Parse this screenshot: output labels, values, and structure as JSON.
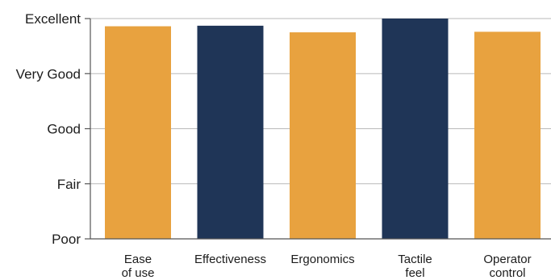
{
  "chart_data": {
    "type": "bar",
    "title": "",
    "xlabel": "",
    "ylabel": "",
    "y_ticks": [
      "Poor",
      "Fair",
      "Good",
      "Very Good",
      "Excellent"
    ],
    "ylim": [
      0,
      4
    ],
    "categories": [
      [
        "Ease",
        "of use"
      ],
      [
        "Effectiveness"
      ],
      [
        "Ergonomics"
      ],
      [
        "Tactile",
        "feel"
      ],
      [
        "Operator",
        "control"
      ]
    ],
    "values": [
      3.86,
      3.87,
      3.75,
      4.0,
      3.76
    ],
    "bar_colors": [
      "#e8a23f",
      "#1f3557",
      "#e8a23f",
      "#1f3557",
      "#e8a23f"
    ],
    "grid": true,
    "legend": "none"
  }
}
